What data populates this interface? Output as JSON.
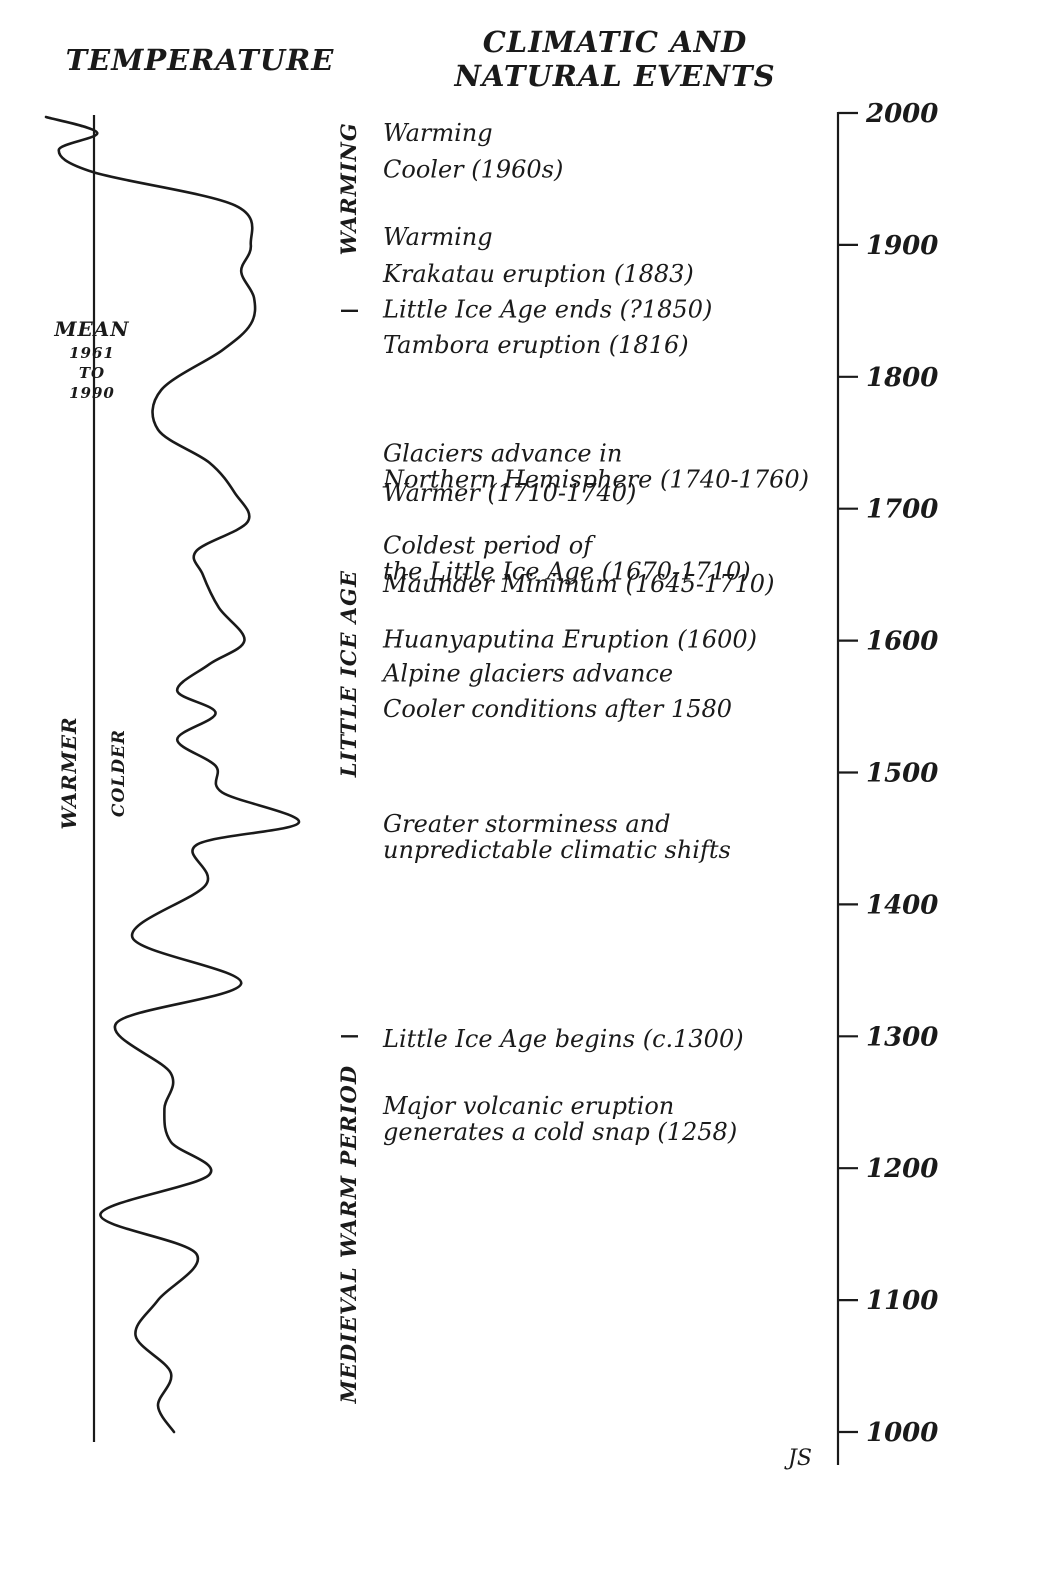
{
  "headers": {
    "temperature": "TEMPERATURE",
    "events_line1": "CLIMATIC AND",
    "events_line2": "NATURAL EVENTS"
  },
  "mean_label": [
    "MEAN",
    "1961",
    "TO",
    "1990"
  ],
  "side_labels": {
    "warmer": "WARMER",
    "colder": "COLDER"
  },
  "periods": [
    {
      "label": "WARMING",
      "from": 1885,
      "to": 2000
    },
    {
      "label": "LITTLE ICE AGE",
      "from": 1300,
      "to": 1850
    },
    {
      "label": "MEDIEVAL WARM PERIOD",
      "from": 1000,
      "to": 1300
    }
  ],
  "period_ticks": [
    1850,
    1300
  ],
  "events": [
    {
      "lines": [
        "Warming"
      ],
      "year": 1985
    },
    {
      "lines": [
        "Cooler (1960s)"
      ],
      "year": 1957
    },
    {
      "lines": [
        "Warming"
      ],
      "year": 1906
    },
    {
      "lines": [
        "Krakatau eruption (1883)"
      ],
      "year": 1878
    },
    {
      "lines": [
        "Little Ice Age ends (?1850)"
      ],
      "year": 1851
    },
    {
      "lines": [
        "Tambora eruption (1816)"
      ],
      "year": 1824
    },
    {
      "lines": [
        "Glaciers advance in",
        "Northern Hemisphere (1740-1760)"
      ],
      "year": 1742
    },
    {
      "lines": [
        "Warmer (1710-1740)"
      ],
      "year": 1712
    },
    {
      "lines": [
        "Coldest period of",
        "the Little Ice Age (1670-1710)"
      ],
      "year": 1672
    },
    {
      "lines": [
        "Maunder Minimum (1645-1710)"
      ],
      "year": 1643
    },
    {
      "lines": [
        "Huanyaputina Eruption (1600)"
      ],
      "year": 1601
    },
    {
      "lines": [
        "Alpine glaciers advance"
      ],
      "year": 1575
    },
    {
      "lines": [
        "Cooler conditions after 1580"
      ],
      "year": 1548
    },
    {
      "lines": [
        "Greater storminess and",
        "unpredictable climatic shifts"
      ],
      "year": 1461
    },
    {
      "lines": [
        "Little Ice Age begins (c.1300)"
      ],
      "year": 1298
    },
    {
      "lines": [
        "Major volcanic eruption",
        "generates a cold snap (1258)"
      ],
      "year": 1247
    }
  ],
  "timeline": {
    "min": 1000,
    "max": 2000
  },
  "year_ticks": [
    2000,
    1900,
    1800,
    1700,
    1600,
    1500,
    1400,
    1300,
    1200,
    1100,
    1000
  ],
  "temperature_curve": [
    {
      "year": 1997,
      "value": -0.75
    },
    {
      "year": 1985,
      "value": 0.05
    },
    {
      "year": 1972,
      "value": -0.55
    },
    {
      "year": 1955,
      "value": 0.0
    },
    {
      "year": 1930,
      "value": 2.2
    },
    {
      "year": 1900,
      "value": 2.45
    },
    {
      "year": 1880,
      "value": 2.3
    },
    {
      "year": 1860,
      "value": 2.5
    },
    {
      "year": 1840,
      "value": 2.45
    },
    {
      "year": 1820,
      "value": 2.0
    },
    {
      "year": 1790,
      "value": 1.05
    },
    {
      "year": 1760,
      "value": 1.0
    },
    {
      "year": 1735,
      "value": 1.8
    },
    {
      "year": 1712,
      "value": 2.2
    },
    {
      "year": 1690,
      "value": 2.4
    },
    {
      "year": 1668,
      "value": 1.6
    },
    {
      "year": 1650,
      "value": 1.7
    },
    {
      "year": 1625,
      "value": 1.95
    },
    {
      "year": 1600,
      "value": 2.35
    },
    {
      "year": 1582,
      "value": 1.8
    },
    {
      "year": 1562,
      "value": 1.3
    },
    {
      "year": 1545,
      "value": 1.9
    },
    {
      "year": 1525,
      "value": 1.3
    },
    {
      "year": 1505,
      "value": 1.9
    },
    {
      "year": 1485,
      "value": 2.0
    },
    {
      "year": 1462,
      "value": 3.2
    },
    {
      "year": 1445,
      "value": 1.6
    },
    {
      "year": 1415,
      "value": 1.75
    },
    {
      "year": 1375,
      "value": 0.6
    },
    {
      "year": 1340,
      "value": 2.3
    },
    {
      "year": 1310,
      "value": 0.35
    },
    {
      "year": 1272,
      "value": 1.2
    },
    {
      "year": 1245,
      "value": 1.1
    },
    {
      "year": 1220,
      "value": 1.2
    },
    {
      "year": 1195,
      "value": 1.8
    },
    {
      "year": 1165,
      "value": 0.1
    },
    {
      "year": 1135,
      "value": 1.6
    },
    {
      "year": 1100,
      "value": 1.0
    },
    {
      "year": 1073,
      "value": 0.65
    },
    {
      "year": 1045,
      "value": 1.2
    },
    {
      "year": 1020,
      "value": 1.0
    },
    {
      "year": 1000,
      "value": 1.25
    }
  ],
  "signature": "JS"
}
